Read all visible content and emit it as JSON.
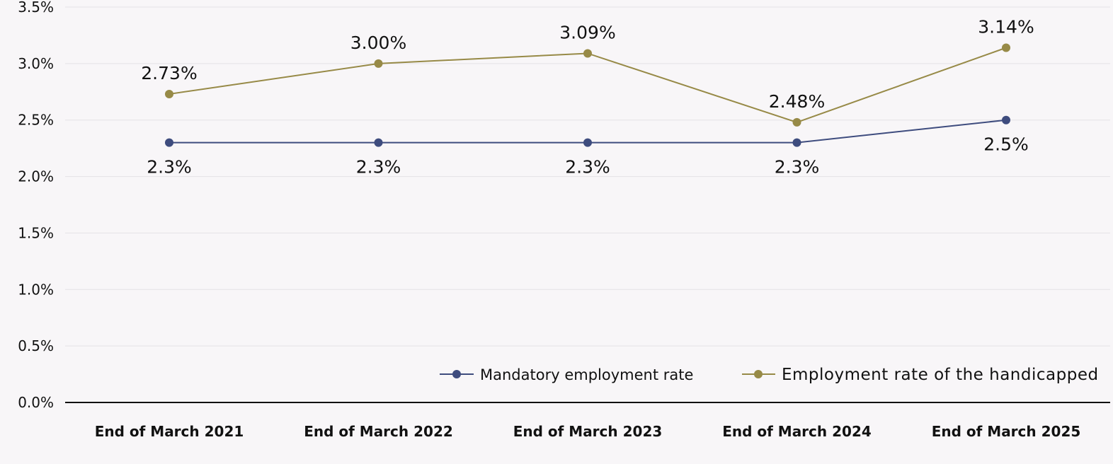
{
  "chart_data": {
    "type": "line",
    "title": "",
    "xlabel": "",
    "ylabel": "",
    "categories": [
      "End of March 2021",
      "End of March 2022",
      "End of March 2023",
      "End of March 2024",
      "End of March 2025"
    ],
    "ylim": [
      0,
      3.5
    ],
    "yticks": [
      0,
      0.5,
      1.0,
      1.5,
      2.0,
      2.5,
      3.0,
      3.5
    ],
    "ytick_labels": [
      "0.0%",
      "0.5%",
      "1.0%",
      "1.5%",
      "2.0%",
      "2.5%",
      "3.0%",
      "3.5%"
    ],
    "grid": true,
    "legend_position": "bottom-right",
    "series": [
      {
        "name": "Mandatory employment rate",
        "color": "#3e4c7e",
        "values": [
          2.3,
          2.3,
          2.3,
          2.3,
          2.5
        ],
        "labels": [
          "2.3%",
          "2.3%",
          "2.3%",
          "2.3%",
          "2.5%"
        ],
        "label_position": "below"
      },
      {
        "name": "Employment rate of the handicapped",
        "color": "#978a47",
        "values": [
          2.73,
          3.0,
          3.09,
          2.48,
          3.14
        ],
        "labels": [
          "2.73%",
          "3.00%",
          "3.09%",
          "2.48%",
          "3.14%"
        ],
        "label_position": "above"
      }
    ]
  }
}
